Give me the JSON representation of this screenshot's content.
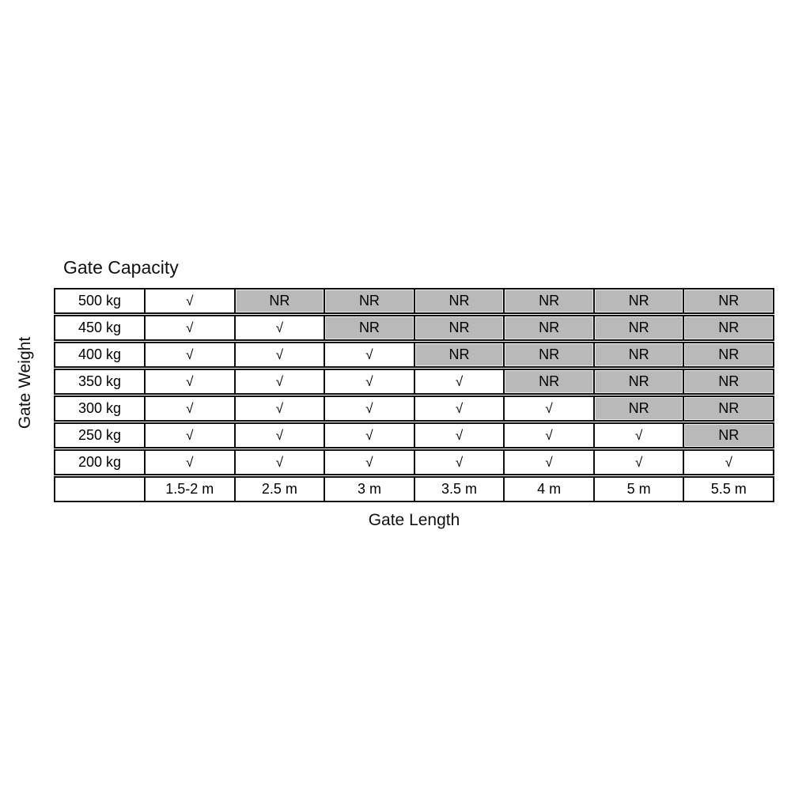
{
  "chart_data": {
    "type": "table",
    "title": "Gate Capacity",
    "xlabel": "Gate Length",
    "ylabel": "Gate Weight",
    "row_labels": [
      "500 kg",
      "450 kg",
      "400 kg",
      "350 kg",
      "300 kg",
      "250 kg",
      "200 kg"
    ],
    "column_labels": [
      "1.5-2 m",
      "2.5 m",
      "3 m",
      "3.5 m",
      "4 m",
      "5 m",
      "5.5 m"
    ],
    "cells": [
      [
        "check",
        "NR",
        "NR",
        "NR",
        "NR",
        "NR",
        "NR"
      ],
      [
        "check",
        "check",
        "NR",
        "NR",
        "NR",
        "NR",
        "NR"
      ],
      [
        "check",
        "check",
        "check",
        "NR",
        "NR",
        "NR",
        "NR"
      ],
      [
        "check",
        "check",
        "check",
        "check",
        "NR",
        "NR",
        "NR"
      ],
      [
        "check",
        "check",
        "check",
        "check",
        "check",
        "NR",
        "NR"
      ],
      [
        "check",
        "check",
        "check",
        "check",
        "check",
        "check",
        "NR"
      ],
      [
        "check",
        "check",
        "check",
        "check",
        "check",
        "check",
        "check"
      ]
    ],
    "symbols": {
      "check": "√",
      "not_recommended": "NR"
    },
    "colors": {
      "nr_background": "#b9b9b9",
      "border": "#101010",
      "text": "#000000",
      "background": "#ffffff"
    },
    "legend_position": "none",
    "grid": true
  }
}
